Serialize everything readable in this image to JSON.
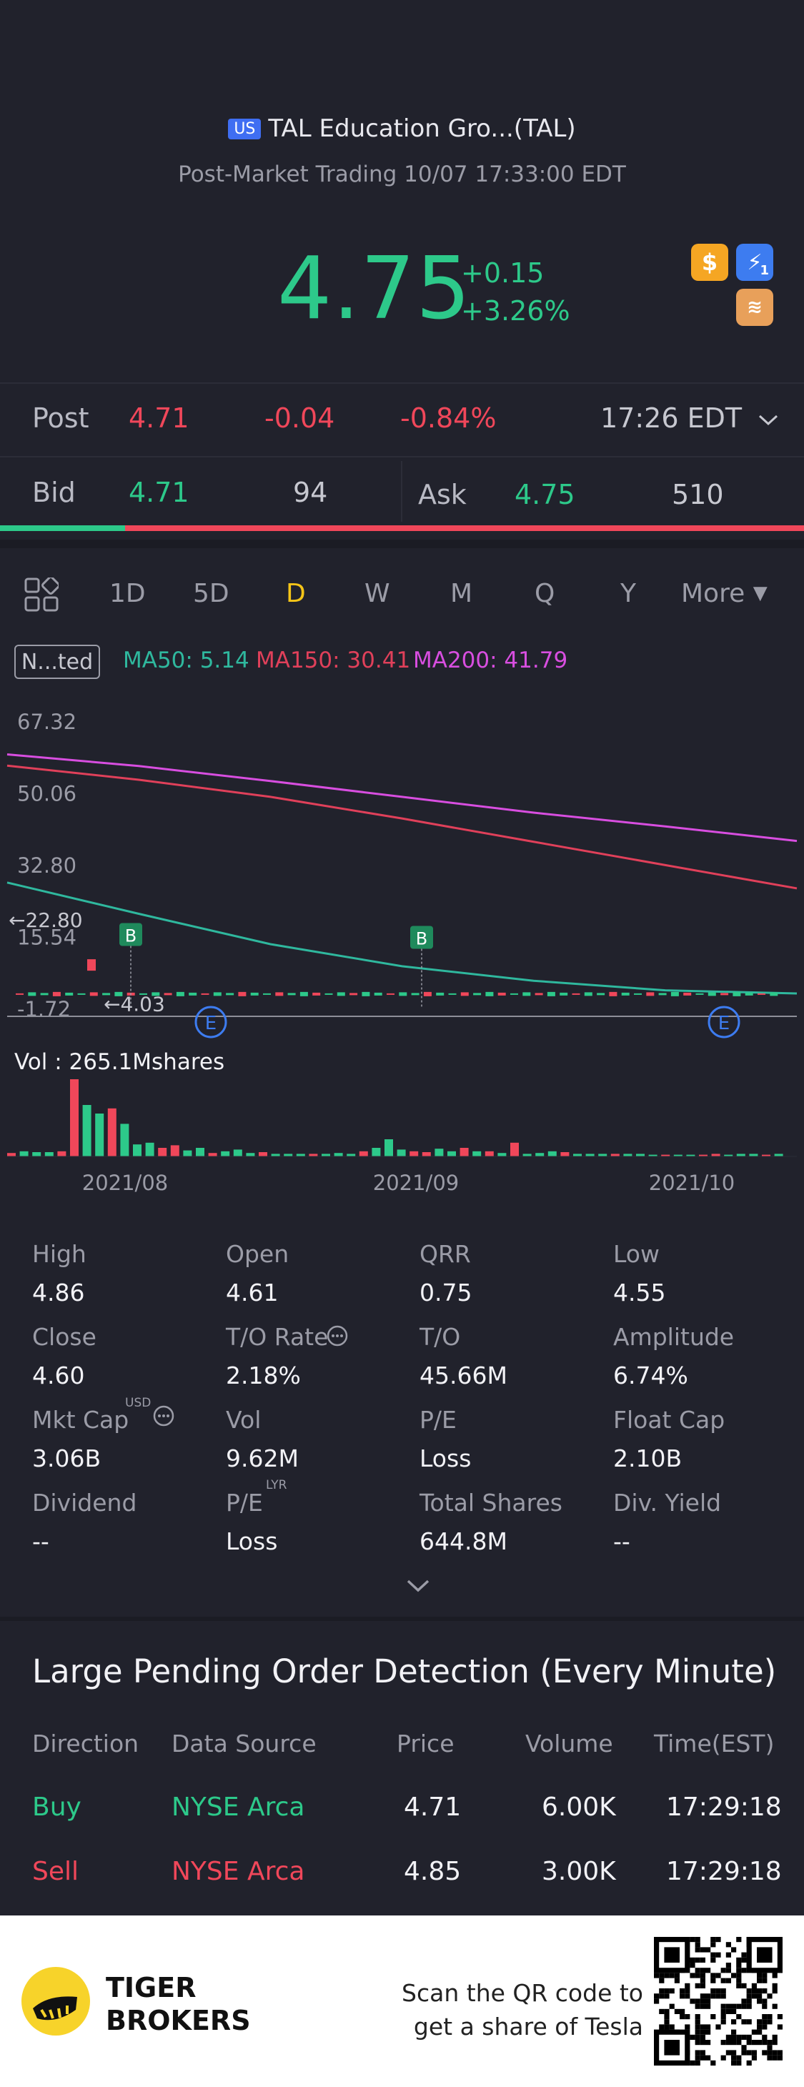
{
  "header": {
    "market_badge": "US",
    "title": "TAL Education Gro...(TAL)",
    "subtitle": "Post-Market Trading 10/07 17:33:00 EDT",
    "price": "4.75",
    "change": "+0.15",
    "change_pct": "+3.26%",
    "icons": [
      "dollar-icon",
      "lightning-icon",
      "stack-icon"
    ],
    "lightning_badge": "1"
  },
  "quote": {
    "post_label": "Post",
    "post_price": "4.71",
    "post_change": "-0.04",
    "post_pct": "-0.84%",
    "post_time": "17:26 EDT",
    "bid_label": "Bid",
    "bid_price": "4.71",
    "bid_size": "94",
    "ask_label": "Ask",
    "ask_price": "4.75",
    "ask_size": "510",
    "bid_ratio": 0.155
  },
  "tabs": [
    "1D",
    "5D",
    "D",
    "W",
    "M",
    "Q",
    "Y"
  ],
  "active_tab": "D",
  "more_label": "More",
  "indicator": {
    "tag": "N...ted",
    "ma50": "MA50: 5.14",
    "ma150": "MA150: 30.41",
    "ma200": "MA200: 41.79"
  },
  "chart": {
    "y_ticks": [
      "67.32",
      "50.06",
      "32.80",
      "15.54",
      "-1.72"
    ],
    "hi_marker": "22.80",
    "lo_marker": "4.03",
    "vol_label": "Vol  : 265.1Mshares",
    "x_ticks": [
      "2021/08",
      "2021/09",
      "2021/10"
    ],
    "b_marker": "B",
    "e_marker": "E"
  },
  "chart_data": {
    "type": "line",
    "ylim": [
      -1.72,
      67.32
    ],
    "series": [
      {
        "name": "MA200",
        "color": "#d84ee0",
        "values": [
          62.6,
          59.8,
          56.2,
          52.4,
          48.6,
          45.3,
          41.79
        ]
      },
      {
        "name": "MA150",
        "color": "#e0405a",
        "values": [
          59.9,
          56.5,
          52.4,
          47.2,
          41.6,
          36.0,
          30.41
        ]
      },
      {
        "name": "MA50",
        "color": "#2fb89e",
        "values": [
          31.8,
          24.3,
          17.0,
          11.7,
          8.2,
          5.9,
          5.14
        ]
      }
    ],
    "volume_label": "Vol  : 265.1Mshares"
  },
  "stats": [
    {
      "label": "High",
      "value": "4.86"
    },
    {
      "label": "Open",
      "value": "4.61"
    },
    {
      "label": "QRR",
      "value": "0.75"
    },
    {
      "label": "Low",
      "value": "4.55"
    },
    {
      "label": "Close",
      "value": "4.60"
    },
    {
      "label": "T/O Rate",
      "value": "2.18%"
    },
    {
      "label": "T/O",
      "value": "45.66M"
    },
    {
      "label": "Amplitude",
      "value": "6.74%"
    },
    {
      "label": "Mkt Cap",
      "value": "3.06B"
    },
    {
      "label": "Vol",
      "value": "9.62M"
    },
    {
      "label": "P/E",
      "value": "Loss"
    },
    {
      "label": "Float Cap",
      "value": "2.10B"
    },
    {
      "label": "Dividend",
      "value": "--"
    },
    {
      "label": "P/E",
      "value": "Loss"
    },
    {
      "label": "Total Shares",
      "value": "644.8M"
    },
    {
      "label": "Div. Yield",
      "value": "--"
    }
  ],
  "stat_superscripts": {
    "usd": "USD",
    "lyr": "LYR"
  },
  "pending": {
    "title": "Large Pending Order Detection (Every Minute)",
    "headers": [
      "Direction",
      "Data Source",
      "Price",
      "Volume",
      "Time(EST)"
    ],
    "rows": [
      {
        "direction": "Buy",
        "source": "NYSE Arca",
        "price": "4.71",
        "volume": "6.00K",
        "time": "17:29:18",
        "color": "#2dc98a"
      },
      {
        "direction": "Sell",
        "source": "NYSE Arca",
        "price": "4.85",
        "volume": "3.00K",
        "time": "17:29:18",
        "color": "#f0475a"
      }
    ]
  },
  "footer": {
    "brand_line1": "TIGER",
    "brand_line2": "BROKERS",
    "scan_line1": "Scan the QR code to",
    "scan_line2": "get a share of Tesla"
  }
}
